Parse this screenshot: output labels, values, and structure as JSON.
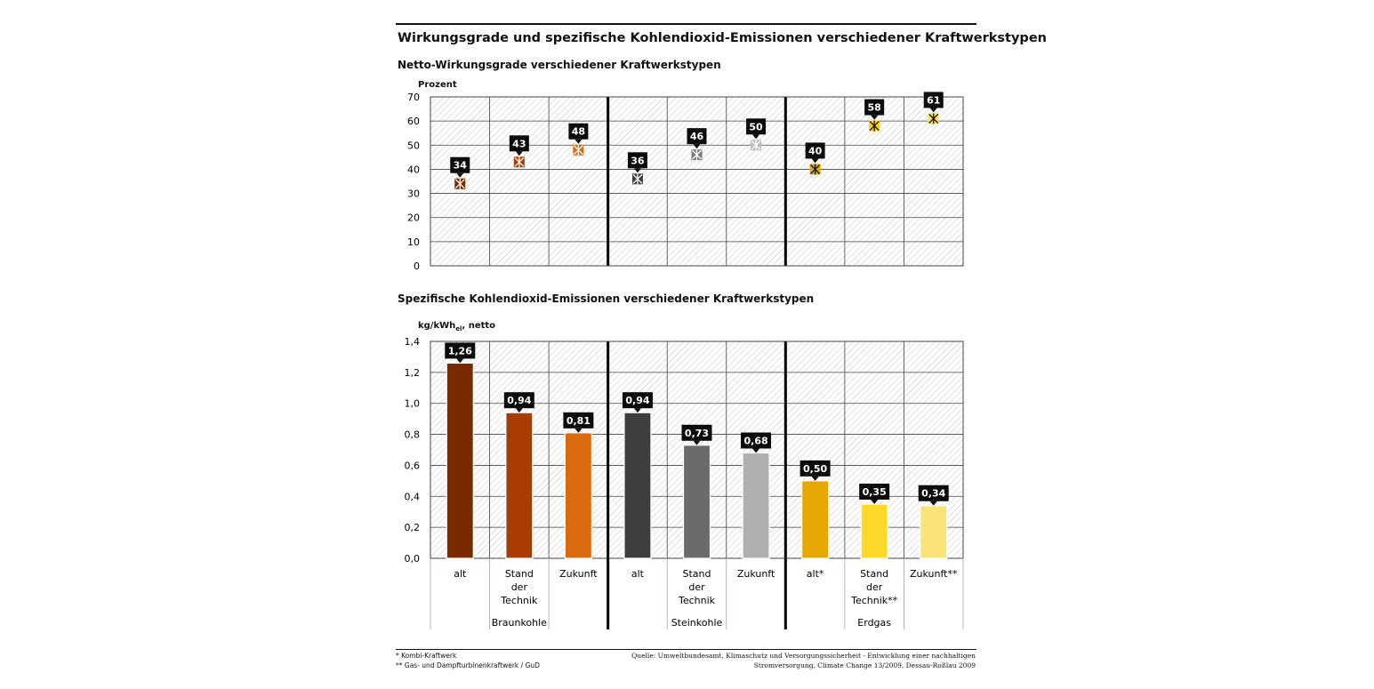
{
  "title": "Wirkungsgrade und spezifische Kohlendioxid-Emissionen verschiedener Kraftwerkstypen",
  "footnotes": [
    "* Kombi-Kraftwerk",
    "** Gas- und Dampfturbinenkraftwerk / GuD"
  ],
  "source": [
    "Quelle: Umweltbundesamt, Klimaschutz und Versorgungssicherheit - Entwicklung einer nachhaltigen",
    "Stromversorgung, Climate Change 13/2009, Dessau-Roßlau 2009"
  ],
  "chart_data": [
    {
      "type": "scatter",
      "title": "Netto-Wirkungsgrade verschiedener Kraftwerkstypen",
      "ylabel": "Prozent",
      "ylim": [
        0,
        70
      ],
      "yticks": [
        "0",
        "10",
        "20",
        "30",
        "40",
        "50",
        "60",
        "70"
      ],
      "grid": true,
      "categories": [
        "alt",
        "Stand der Technik",
        "Zukunft",
        "alt",
        "Stand der Technik",
        "Zukunft",
        "alt*",
        "Stand der Technik**",
        "Zukunft**"
      ],
      "values": [
        34,
        43,
        48,
        36,
        46,
        50,
        40,
        58,
        61
      ],
      "value_labels": [
        "34",
        "43",
        "48",
        "36",
        "46",
        "50",
        "40",
        "58",
        "61"
      ],
      "colors": [
        "#7a2a00",
        "#a83c05",
        "#d96a10",
        "#3e3e3e",
        "#7a7a7a",
        "#bdbdbd",
        "#e0a800",
        "#f5d020",
        "#f7e06a"
      ]
    },
    {
      "type": "bar",
      "title": "Spezifische Kohlendioxid-Emissionen verschiedener Kraftwerkstypen",
      "ylabel": "kg/kWhel, netto",
      "ylim": [
        0,
        1.4
      ],
      "yticks": [
        "0,0",
        "0,2",
        "0,4",
        "0,6",
        "0,8",
        "1,0",
        "1,2",
        "1,4"
      ],
      "grid": true,
      "categories": [
        [
          "alt"
        ],
        [
          "Stand",
          "der",
          "Technik"
        ],
        [
          "Zukunft"
        ],
        [
          "alt"
        ],
        [
          "Stand",
          "der",
          "Technik"
        ],
        [
          "Zukunft"
        ],
        [
          "alt*"
        ],
        [
          "Stand",
          "der",
          "Technik**"
        ],
        [
          "Zukunft**"
        ]
      ],
      "groups": [
        "Braunkohle",
        "Steinkohle",
        "Erdgas"
      ],
      "values": [
        1.26,
        0.94,
        0.81,
        0.94,
        0.73,
        0.68,
        0.5,
        0.35,
        0.34
      ],
      "value_labels": [
        "1,26",
        "0,94",
        "0,81",
        "0,94",
        "0,73",
        "0,68",
        "0,50",
        "0,35",
        "0,34"
      ],
      "colors": [
        "#7a2a00",
        "#a83c05",
        "#d96a10",
        "#3e3e3e",
        "#6b6b6b",
        "#b0b0b0",
        "#e6a800",
        "#ffd928",
        "#fbe377"
      ]
    }
  ]
}
